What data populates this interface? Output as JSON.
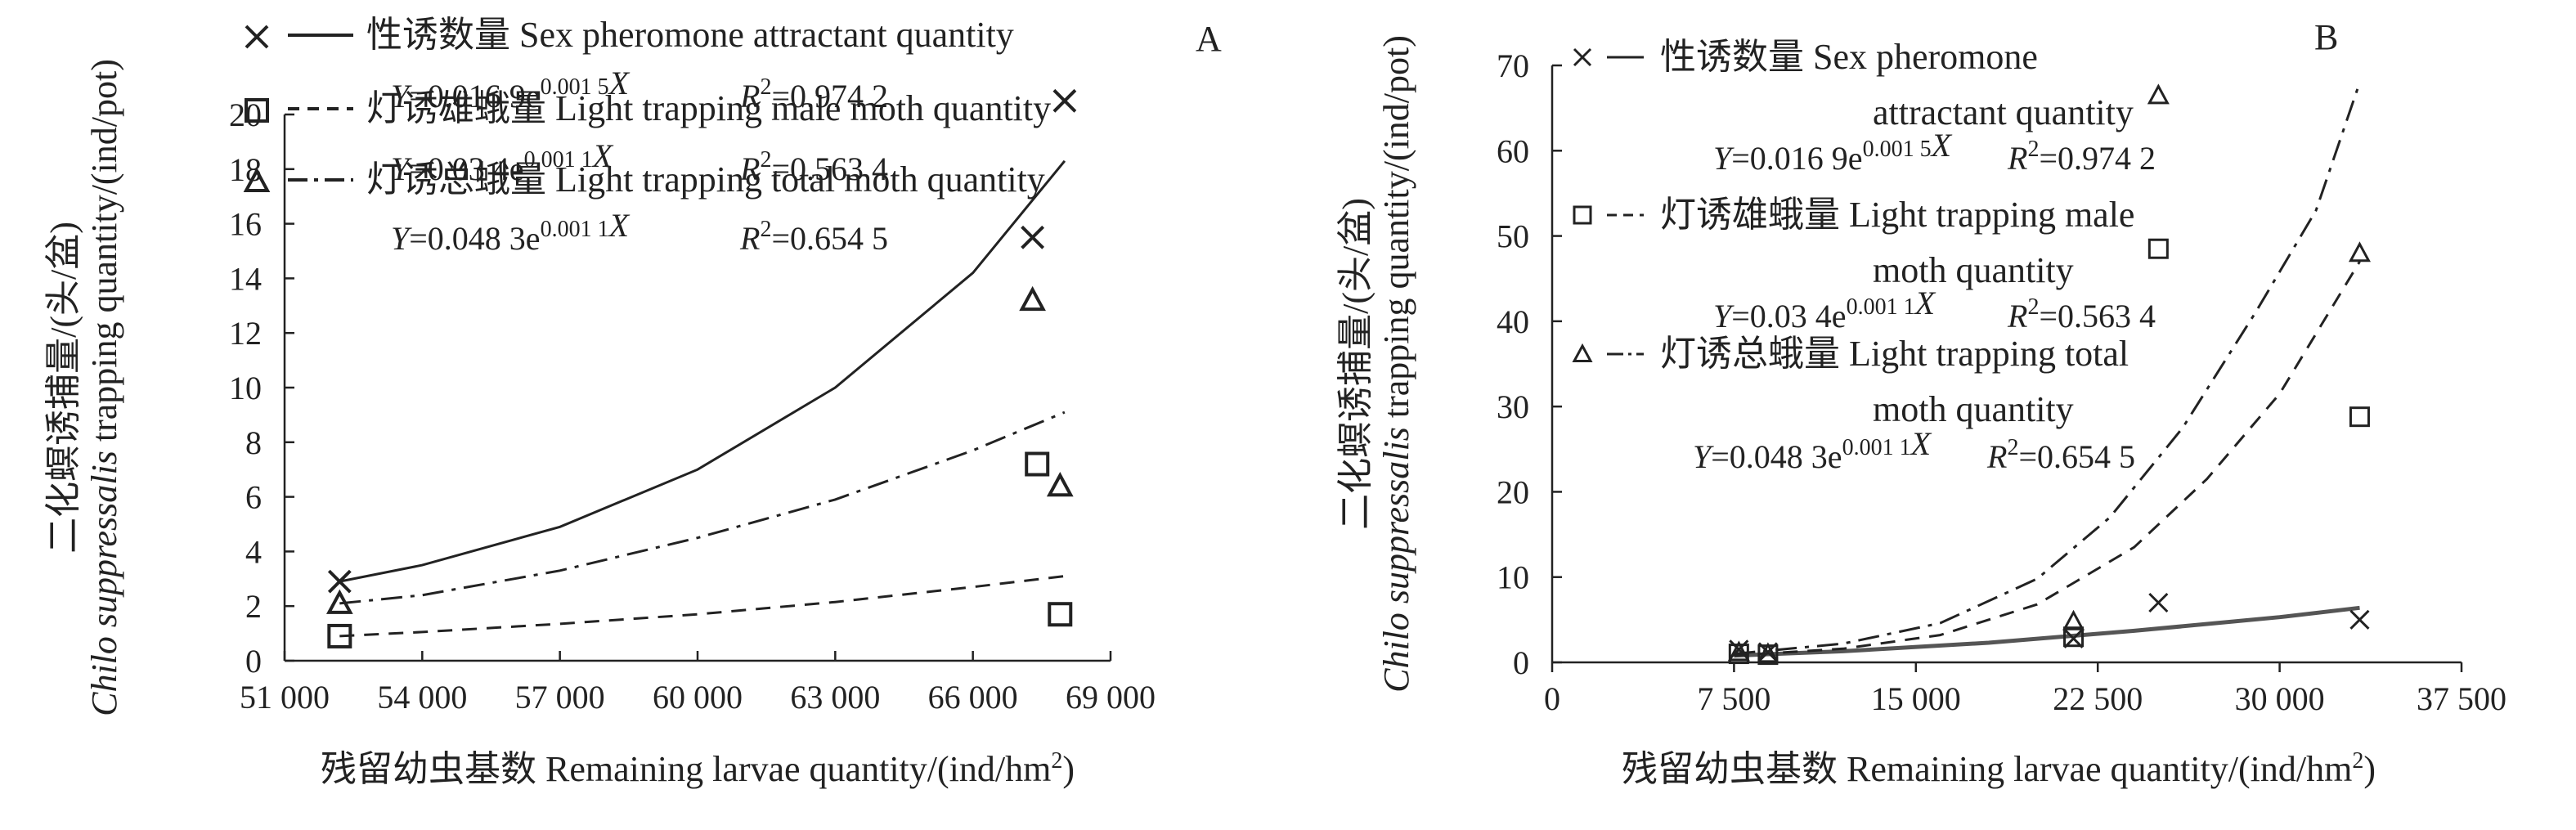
{
  "chart_data": [
    {
      "panel": "A",
      "type": "scatter",
      "xlabel": "残留幼虫基数 Remaining larvae quantity/(ind/hm²)",
      "ylabel_cn": "二化螟诱捕量/(头/盆)",
      "ylabel_en_italic": "Chilo suppressalis",
      "ylabel_en_rest": " trapping quantity/(ind/pot)",
      "xlim": [
        51000,
        69000
      ],
      "ylim": [
        0,
        20
      ],
      "x_ticks": [
        51000,
        54000,
        57000,
        60000,
        63000,
        66000,
        69000
      ],
      "x_tick_labels": [
        "51 000",
        "54 000",
        "57 000",
        "60 000",
        "63 000",
        "66 000",
        "69 000"
      ],
      "y_ticks": [
        0,
        2,
        4,
        6,
        8,
        10,
        12,
        14,
        16,
        18,
        20
      ],
      "y_tick_labels": [
        "0",
        "2",
        "4",
        "6",
        "8",
        "10",
        "12",
        "14",
        "16",
        "18",
        "20"
      ],
      "series": [
        {
          "legend": "性诱数量 Sex pheromone attractant quantity",
          "marker": "x",
          "line": "solid",
          "equation": "Y=0.016 9e^0.001 5X",
          "r2": "0.974 2",
          "points": [
            [
              52200,
              2.9
            ],
            [
              67300,
              15.5
            ],
            [
              68000,
              20.5
            ]
          ],
          "curve": [
            [
              52200,
              2.9
            ],
            [
              54000,
              3.5
            ],
            [
              57000,
              4.9
            ],
            [
              60000,
              7.0
            ],
            [
              63000,
              10.0
            ],
            [
              66000,
              14.2
            ],
            [
              68000,
              18.3
            ]
          ]
        },
        {
          "legend": "灯诱雄蛾量 Light trapping male moth quantity",
          "marker": "square",
          "line": "dash",
          "equation": "Y=0.03 4e^0.001 1X",
          "r2": "0.563 4",
          "points": [
            [
              52200,
              0.9
            ],
            [
              67400,
              7.2
            ],
            [
              67900,
              1.7
            ]
          ],
          "curve": [
            [
              52200,
              0.9
            ],
            [
              54000,
              1.05
            ],
            [
              57000,
              1.35
            ],
            [
              60000,
              1.7
            ],
            [
              63000,
              2.15
            ],
            [
              66000,
              2.7
            ],
            [
              68000,
              3.1
            ]
          ]
        },
        {
          "legend": "灯诱总蛾量 Light trapping total moth quantity",
          "marker": "triangle",
          "line": "dashdot",
          "equation": "Y=0.048 3e^0.001 1X",
          "r2": "0.654 5",
          "points": [
            [
              52200,
              2.1
            ],
            [
              67300,
              13.2
            ],
            [
              67900,
              6.4
            ]
          ],
          "curve": [
            [
              52200,
              2.1
            ],
            [
              54000,
              2.4
            ],
            [
              57000,
              3.3
            ],
            [
              60000,
              4.5
            ],
            [
              63000,
              5.9
            ],
            [
              66000,
              7.7
            ],
            [
              68000,
              9.1
            ]
          ]
        }
      ]
    },
    {
      "panel": "B",
      "type": "scatter",
      "xlabel": "残留幼虫基数 Remaining larvae quantity/(ind/hm²)",
      "ylabel_cn": "二化螟诱捕量/(头/盆)",
      "ylabel_en_italic": "Chilo suppressalis",
      "ylabel_en_rest": " trapping quantity/(ind/pot)",
      "xlim": [
        0,
        37500
      ],
      "ylim": [
        0,
        70
      ],
      "x_ticks": [
        0,
        7500,
        15000,
        22500,
        30000,
        37500
      ],
      "x_tick_labels": [
        "0",
        "7 500",
        "15 000",
        "22 500",
        "30 000",
        "37 500"
      ],
      "y_ticks": [
        0,
        10,
        20,
        30,
        40,
        50,
        60,
        70
      ],
      "y_tick_labels": [
        "0",
        "10",
        "20",
        "30",
        "40",
        "50",
        "60",
        "70"
      ],
      "series": [
        {
          "legend_line1": "性诱数量 Sex pheromone",
          "legend_line2": "attractant quantity",
          "marker": "x",
          "line": "solid",
          "equation": "Y=0.016 9e^0.001 5X",
          "r2": "0.974 2",
          "points": [
            [
              7700,
              1.5
            ],
            [
              8900,
              1.2
            ],
            [
              21500,
              2.8
            ],
            [
              25000,
              7.0
            ],
            [
              33300,
              5.0
            ]
          ],
          "curve": [
            [
              7500,
              0.8
            ],
            [
              12000,
              1.3
            ],
            [
              18000,
              2.3
            ],
            [
              24000,
              3.7
            ],
            [
              30000,
              5.3
            ],
            [
              33300,
              6.4
            ]
          ]
        },
        {
          "legend_line1": "灯诱雄蛾量 Light trapping male",
          "legend_line2": "moth quantity",
          "marker": "square",
          "line": "dash",
          "equation": "Y=0.03 4e^0.001 1X",
          "r2": "0.563 4",
          "points": [
            [
              7700,
              1.0
            ],
            [
              8900,
              0.9
            ],
            [
              21500,
              3.0
            ],
            [
              25000,
              48.5
            ],
            [
              33300,
              28.8
            ]
          ],
          "curve": [
            [
              7500,
              0.8
            ],
            [
              12000,
              1.6
            ],
            [
              16000,
              3.2
            ],
            [
              20000,
              6.8
            ],
            [
              24000,
              13.5
            ],
            [
              27000,
              21.5
            ],
            [
              30000,
              31.5
            ],
            [
              33300,
              47.0
            ]
          ]
        },
        {
          "legend_line1": "灯诱总蛾量 Light trapping total",
          "legend_line2": "moth quantity",
          "marker": "triangle",
          "line": "dashdot",
          "equation": "Y=0.048 3e^0.001 1X",
          "r2": "0.654 5",
          "points": [
            [
              7700,
              1.2
            ],
            [
              8900,
              1.0
            ],
            [
              21500,
              4.8
            ],
            [
              25000,
              66.5
            ],
            [
              33300,
              48.0
            ]
          ],
          "curve": [
            [
              7500,
              1.0
            ],
            [
              12000,
              2.2
            ],
            [
              16000,
              4.6
            ],
            [
              20000,
              9.8
            ],
            [
              23000,
              17.0
            ],
            [
              26000,
              27.5
            ],
            [
              29000,
              41.0
            ],
            [
              31500,
              53.0
            ],
            [
              33300,
              68.0
            ]
          ]
        }
      ]
    }
  ]
}
